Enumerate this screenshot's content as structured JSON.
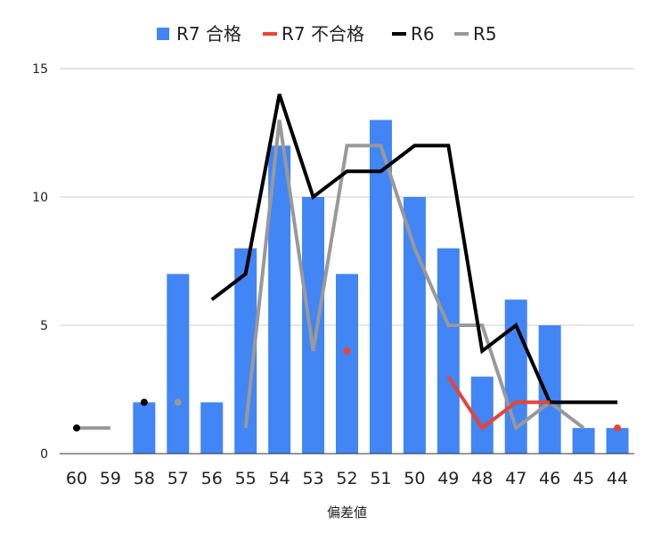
{
  "chart_data": {
    "type": "bar",
    "categories": [
      "60",
      "59",
      "58",
      "57",
      "56",
      "55",
      "54",
      "53",
      "52",
      "51",
      "50",
      "49",
      "48",
      "47",
      "46",
      "45",
      "44"
    ],
    "xlabel": "偏差値",
    "ylabel": "",
    "ylim": [
      0,
      15
    ],
    "yticks": [
      "0",
      "5",
      "10",
      "15"
    ],
    "ytick_values": [
      0,
      5,
      10,
      15
    ],
    "grid": true,
    "legend_position": "top",
    "series": [
      {
        "name": "R7 合格",
        "kind": "bar",
        "color": "#4285f4",
        "values": [
          null,
          null,
          2,
          7,
          2,
          8,
          12,
          10,
          7,
          13,
          10,
          8,
          3,
          6,
          5,
          1,
          1
        ]
      },
      {
        "name": "R7 不合格",
        "kind": "line",
        "color": "#ea4335",
        "values": [
          null,
          null,
          null,
          null,
          null,
          null,
          null,
          null,
          4,
          null,
          null,
          3,
          1,
          2,
          2,
          null,
          1
        ]
      },
      {
        "name": "R6",
        "kind": "line",
        "color": "#000000",
        "values": [
          1,
          null,
          2,
          null,
          6,
          7,
          14,
          10,
          11,
          11,
          12,
          12,
          4,
          5,
          2,
          2,
          2
        ]
      },
      {
        "name": "R5",
        "kind": "line",
        "color": "#999999",
        "values": [
          1,
          1,
          null,
          2,
          null,
          1,
          13,
          4,
          12,
          12,
          8,
          5,
          5,
          1,
          2,
          1,
          null
        ]
      }
    ]
  }
}
